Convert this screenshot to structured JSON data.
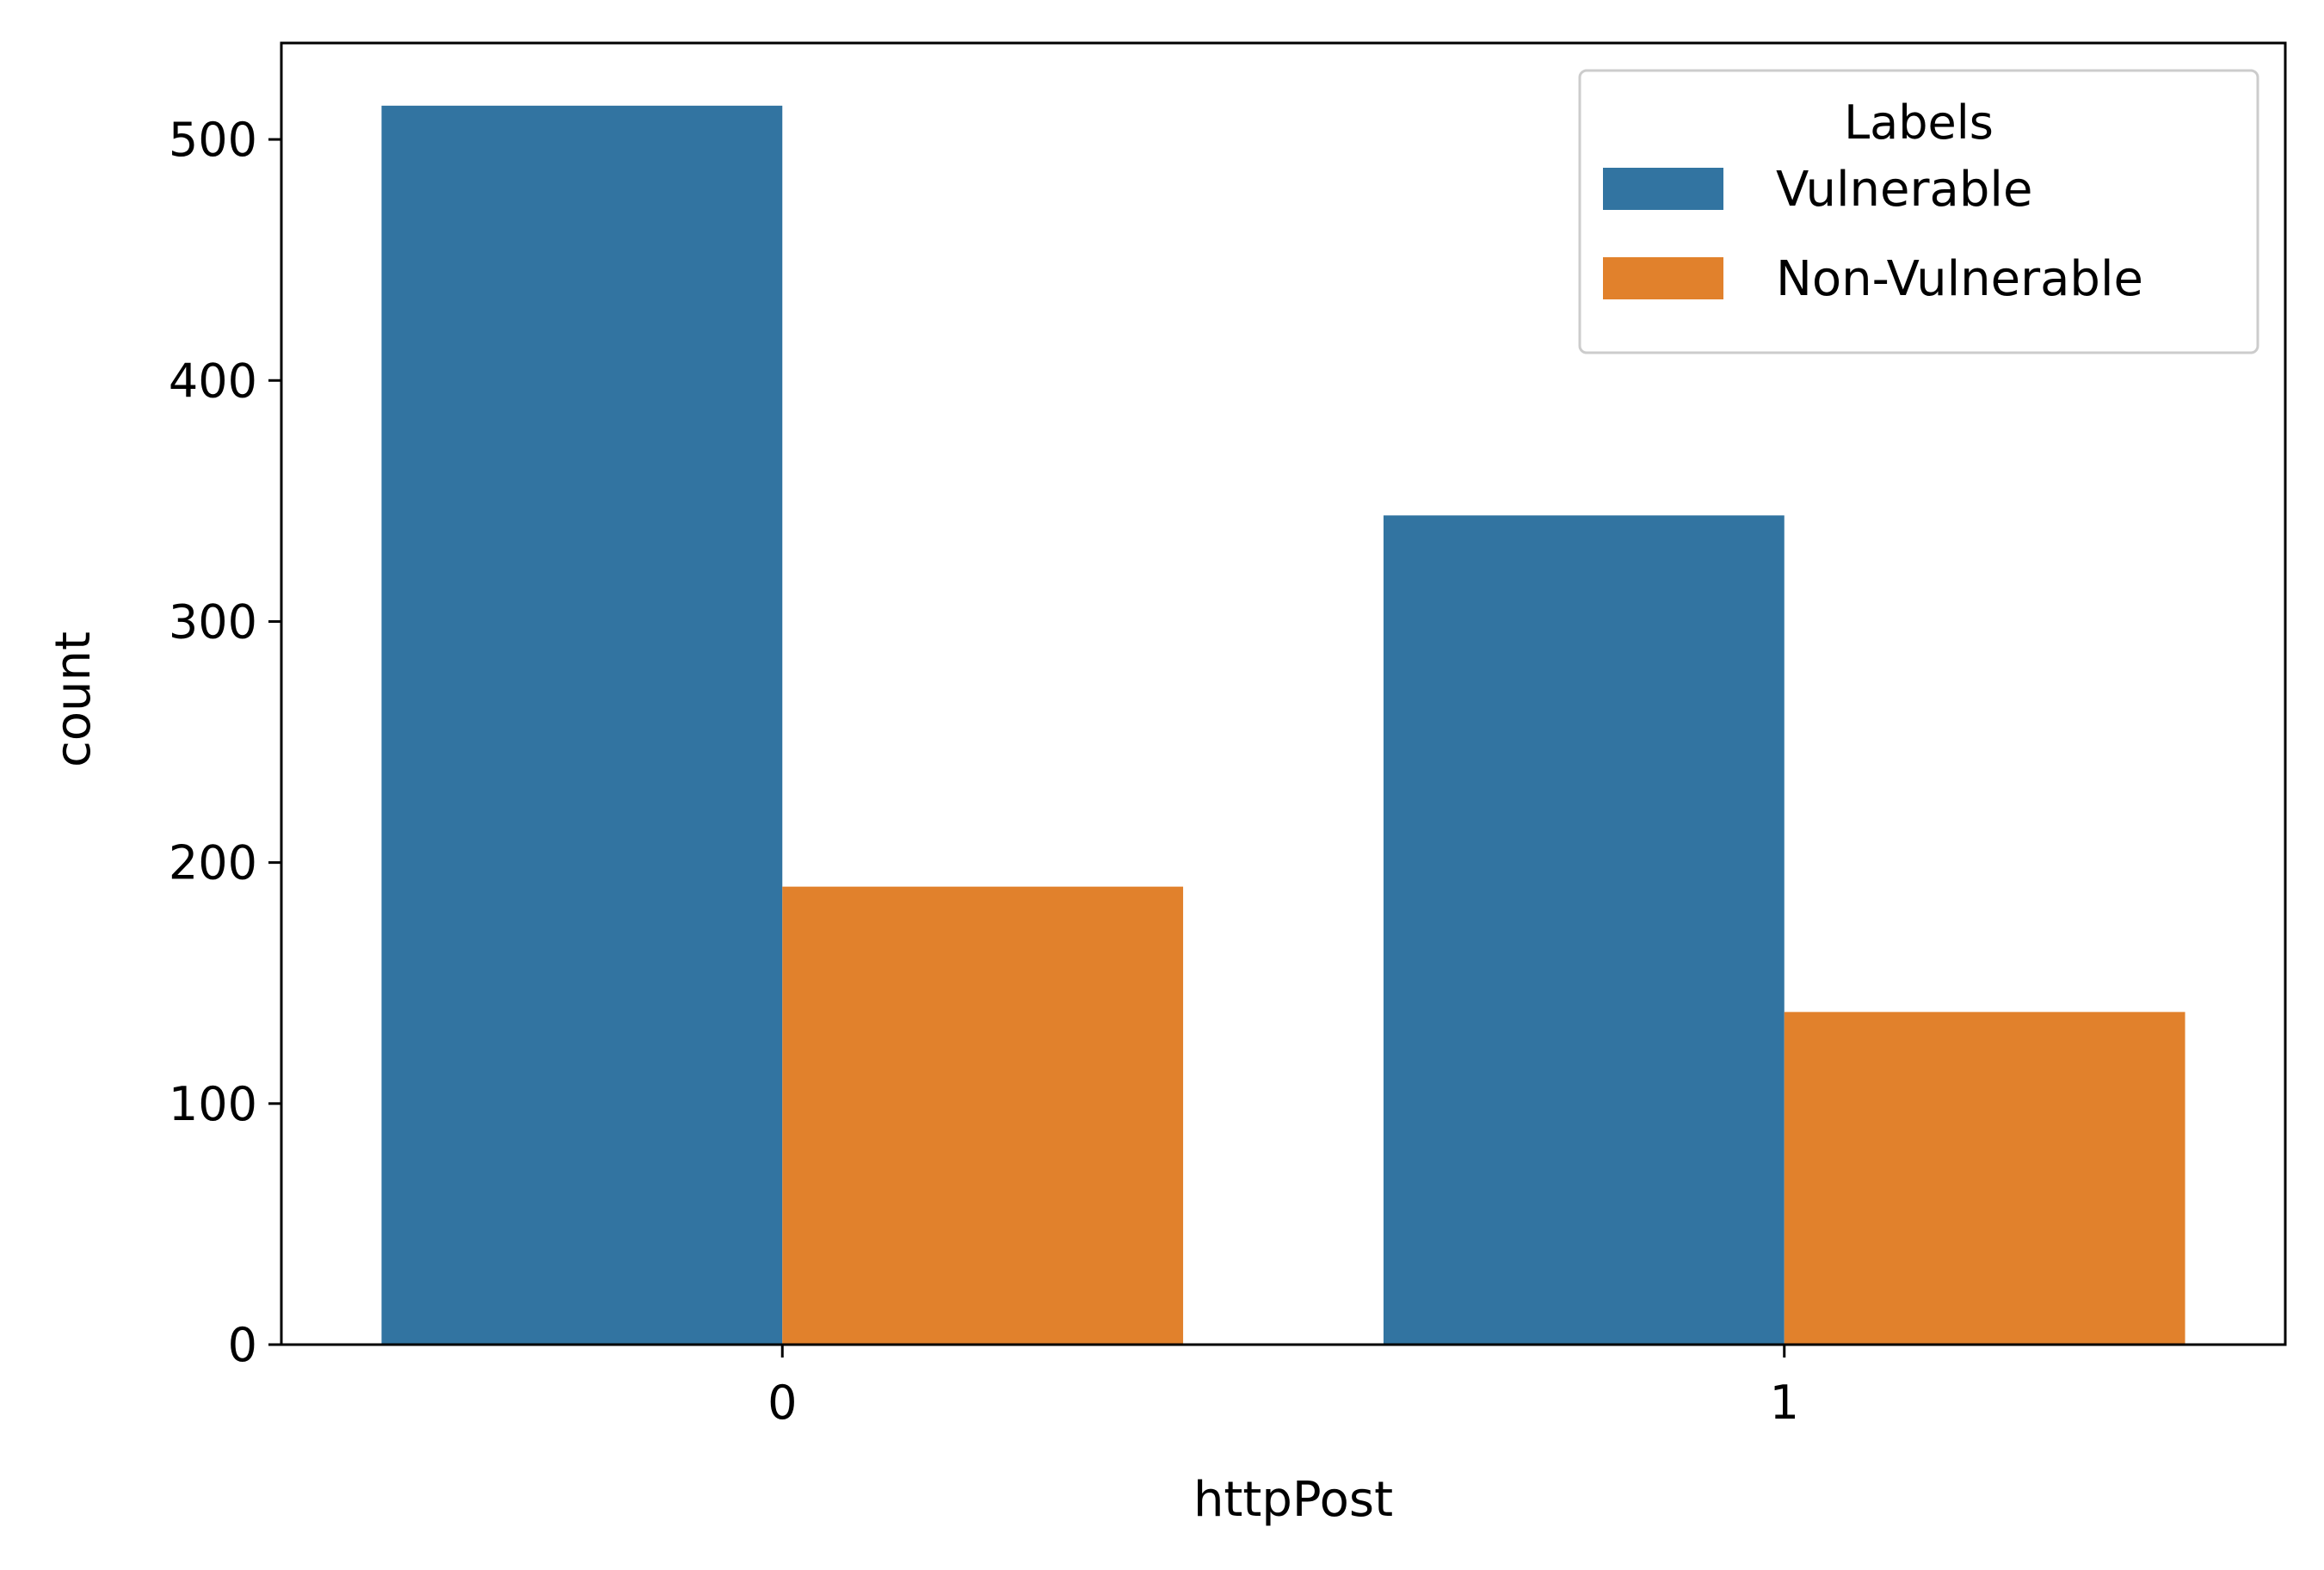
{
  "chart_data": {
    "type": "bar",
    "title": "",
    "xlabel": "httpPost",
    "ylabel": "count",
    "categories": [
      "0",
      "1"
    ],
    "series": [
      {
        "name": "Vulnerable",
        "values": [
          514,
          344
        ],
        "color": "#3274a1"
      },
      {
        "name": "Non-Vulnerable",
        "values": [
          190,
          138
        ],
        "color": "#e1812c"
      }
    ],
    "ylim": [
      0,
      540
    ],
    "yticks": [
      0,
      100,
      200,
      300,
      400,
      500
    ],
    "grid": false,
    "legend": {
      "title": "Labels",
      "position": "top-right"
    }
  }
}
